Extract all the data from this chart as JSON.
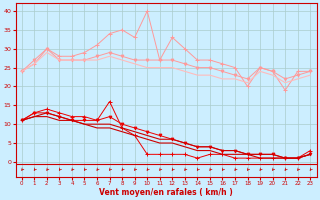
{
  "x": [
    0,
    1,
    2,
    3,
    4,
    5,
    6,
    7,
    8,
    9,
    10,
    11,
    12,
    13,
    14,
    15,
    16,
    17,
    18,
    19,
    20,
    21,
    22,
    23
  ],
  "series": [
    {
      "name": "rafales_high",
      "color": "#ff9999",
      "linewidth": 0.7,
      "marker": "+",
      "markersize": 3,
      "y": [
        24,
        26,
        30,
        28,
        28,
        29,
        31,
        34,
        35,
        33,
        40,
        27,
        33,
        30,
        27,
        27,
        26,
        25,
        20,
        25,
        24,
        19,
        24,
        24
      ]
    },
    {
      "name": "rafales_mid",
      "color": "#ff9999",
      "linewidth": 0.7,
      "marker": "v",
      "markersize": 2,
      "y": [
        24,
        27,
        30,
        27,
        27,
        27,
        28,
        29,
        28,
        27,
        27,
        27,
        27,
        26,
        25,
        25,
        24,
        23,
        22,
        25,
        24,
        22,
        23,
        24
      ]
    },
    {
      "name": "rafales_low",
      "color": "#ffbbbb",
      "linewidth": 0.8,
      "marker": null,
      "markersize": 0,
      "y": [
        24,
        26,
        29,
        27,
        27,
        27,
        27,
        28,
        27,
        26,
        25,
        25,
        25,
        24,
        23,
        23,
        22,
        22,
        21,
        24,
        23,
        21,
        22,
        23
      ]
    },
    {
      "name": "vent_high",
      "color": "#ee0000",
      "linewidth": 0.7,
      "marker": "+",
      "markersize": 3,
      "y": [
        11,
        13,
        14,
        13,
        12,
        12,
        11,
        16,
        9,
        7,
        2,
        2,
        2,
        2,
        1,
        2,
        2,
        1,
        1,
        1,
        1,
        1,
        1,
        3
      ]
    },
    {
      "name": "vent_mid",
      "color": "#ee0000",
      "linewidth": 0.7,
      "marker": "v",
      "markersize": 2,
      "y": [
        11,
        13,
        13,
        12,
        11,
        11,
        11,
        12,
        10,
        9,
        8,
        7,
        6,
        5,
        4,
        4,
        3,
        3,
        2,
        2,
        2,
        1,
        1,
        2
      ]
    },
    {
      "name": "vent_low1",
      "color": "#cc0000",
      "linewidth": 0.8,
      "marker": null,
      "markersize": 0,
      "y": [
        11,
        12,
        13,
        12,
        11,
        10,
        10,
        10,
        9,
        8,
        7,
        6,
        6,
        5,
        4,
        4,
        3,
        3,
        2,
        2,
        2,
        1,
        1,
        2
      ]
    },
    {
      "name": "vent_low2",
      "color": "#cc0000",
      "linewidth": 0.8,
      "marker": null,
      "markersize": 0,
      "y": [
        11,
        12,
        12,
        11,
        11,
        10,
        9,
        9,
        8,
        7,
        6,
        5,
        5,
        4,
        3,
        3,
        2,
        2,
        2,
        1,
        1,
        1,
        1,
        2
      ]
    }
  ],
  "xlabel": "Vent moyen/en rafales ( km/h )",
  "xlim": [
    -0.5,
    23.5
  ],
  "ylim": [
    -4,
    42
  ],
  "yticks": [
    0,
    5,
    10,
    15,
    20,
    25,
    30,
    35,
    40
  ],
  "xticks": [
    0,
    1,
    2,
    3,
    4,
    5,
    6,
    7,
    8,
    9,
    10,
    11,
    12,
    13,
    14,
    15,
    16,
    17,
    18,
    19,
    20,
    21,
    22,
    23
  ],
  "bg_color": "#cceeff",
  "grid_color": "#aacccc",
  "axis_color": "#cc0000",
  "text_color": "#cc0000"
}
